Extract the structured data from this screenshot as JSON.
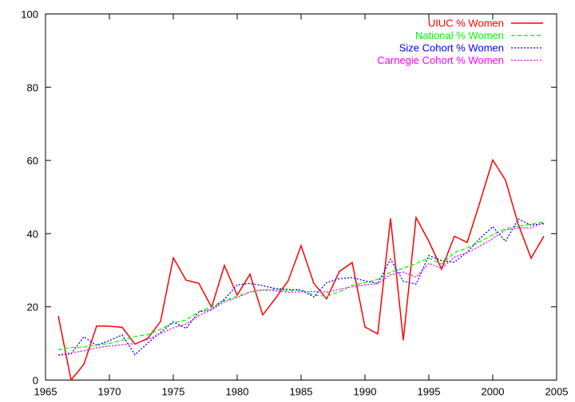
{
  "chart_data": {
    "type": "line",
    "title": "",
    "xlabel": "",
    "ylabel": "",
    "xlim": [
      1965,
      2005
    ],
    "ylim": [
      0,
      100
    ],
    "x_ticks": [
      "1965",
      "1970",
      "1975",
      "1980",
      "1985",
      "1990",
      "1995",
      "2000",
      "2005"
    ],
    "y_ticks": [
      "0",
      "20",
      "40",
      "60",
      "80",
      "100"
    ],
    "grid": false,
    "legend_position": "top-right",
    "x": [
      1966,
      1967,
      1968,
      1969,
      1970,
      1971,
      1972,
      1973,
      1974,
      1975,
      1976,
      1977,
      1978,
      1979,
      1980,
      1981,
      1982,
      1983,
      1984,
      1985,
      1986,
      1987,
      1988,
      1989,
      1990,
      1991,
      1992,
      1993,
      1994,
      1995,
      1996,
      1997,
      1998,
      1999,
      2000,
      2001,
      2002,
      2003,
      2004
    ],
    "series": [
      {
        "name": "UIUC % Women",
        "color": "#ff0000",
        "style": "solid",
        "values": [
          17.5,
          0,
          4.3,
          14.8,
          14.7,
          14.4,
          9.8,
          11.4,
          16.0,
          33.4,
          27.3,
          26.4,
          19.9,
          31.3,
          23.2,
          28.9,
          17.8,
          22.3,
          27.2,
          36.7,
          26.4,
          22.2,
          29.7,
          32.1,
          14.5,
          12.6,
          44.2,
          10.9,
          44.4,
          37.9,
          30.3,
          39.3,
          37.6,
          48.6,
          60.1,
          54.6,
          42.5,
          33.3,
          39.3
        ]
      },
      {
        "name": "National % Women",
        "color": "#00ff00",
        "style": "dashed",
        "values": [
          8.2,
          8.9,
          9.0,
          9.6,
          10.0,
          10.9,
          11.9,
          12.4,
          13.9,
          15.6,
          16.4,
          18.7,
          20.0,
          21.7,
          22.9,
          24.0,
          24.6,
          24.8,
          24.4,
          24.6,
          23.2,
          22.9,
          24.1,
          25.9,
          26.6,
          27.5,
          29.5,
          30.5,
          31.8,
          33.3,
          31.7,
          34.8,
          36.1,
          37.8,
          39.7,
          41.3,
          42.1,
          42.6,
          43.2
        ]
      },
      {
        "name": "Size Cohort % Women",
        "color": "#0000ff",
        "style": "dotted",
        "values": [
          6.8,
          7.2,
          11.8,
          9.5,
          10.8,
          12.3,
          6.9,
          10.1,
          13.0,
          15.9,
          14.1,
          18.6,
          19.3,
          22.1,
          26.0,
          26.4,
          25.8,
          25.0,
          24.8,
          24.6,
          22.7,
          26.6,
          27.7,
          28.0,
          27.1,
          26.4,
          33.0,
          27.0,
          26.2,
          34.0,
          32.6,
          32.2,
          35.0,
          38.7,
          41.9,
          37.9,
          44.0,
          42.3,
          42.7
        ]
      },
      {
        "name": "Carnegie Cohort % Women",
        "color": "#ff00ff",
        "style": "dotted",
        "values": [
          6.9,
          7.4,
          8.0,
          8.8,
          9.3,
          9.6,
          10.0,
          11.1,
          12.7,
          14.3,
          15.3,
          17.6,
          19.2,
          21.4,
          22.5,
          24.1,
          24.6,
          24.4,
          24.0,
          24.1,
          24.2,
          24.0,
          24.8,
          25.5,
          26.0,
          26.3,
          28.8,
          29.5,
          28.1,
          31.9,
          30.5,
          33.6,
          34.8,
          36.6,
          38.6,
          41.0,
          41.6,
          41.5,
          43.1
        ]
      }
    ]
  }
}
